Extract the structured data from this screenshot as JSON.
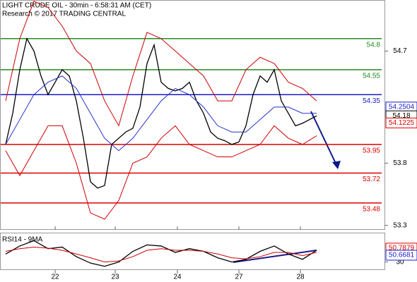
{
  "chart_data": [
    {
      "type": "line",
      "title": "LIGHT CRUDE OIL - 30min - 6:58:31 AM (CET)",
      "subtitle": "Research © 2017 TRADING CENTRAL",
      "xlim": [
        0,
        53
      ],
      "ylim": [
        53.27,
        55.11
      ],
      "yticks": [
        54.7,
        53.8,
        53.3
      ],
      "series": [
        {
          "color": "#000000",
          "x": [
            0,
            1,
            2,
            3,
            4,
            5,
            6,
            7,
            8,
            9,
            10,
            11,
            12,
            13,
            14,
            15,
            16,
            17,
            18,
            19,
            20,
            21,
            22,
            23,
            24,
            25,
            26,
            27,
            28,
            29,
            30,
            31,
            32,
            33,
            34,
            35,
            36,
            37,
            38,
            39,
            40,
            41,
            42,
            43,
            44
          ],
          "values": [
            53.95,
            54.2,
            54.55,
            54.8,
            54.7,
            54.5,
            54.35,
            54.45,
            54.55,
            54.5,
            54.3,
            54.0,
            53.65,
            53.6,
            53.62,
            53.95,
            54.0,
            54.05,
            54.08,
            54.25,
            54.6,
            54.75,
            54.45,
            54.4,
            54.38,
            54.4,
            54.45,
            54.3,
            54.2,
            54.05,
            54.0,
            53.98,
            53.95,
            53.97,
            54.1,
            54.35,
            54.5,
            54.45,
            54.55,
            54.3,
            54.2,
            54.1,
            54.12,
            54.15,
            54.18
          ]
        },
        {
          "color": "#cc0000",
          "x": [
            0,
            2,
            4,
            6,
            8,
            10,
            12,
            14,
            16,
            18,
            20,
            22,
            24,
            26,
            28,
            30,
            32,
            34,
            36,
            38,
            40,
            42,
            44
          ],
          "values": [
            54.3,
            54.8,
            55.1,
            55.05,
            54.9,
            54.7,
            54.6,
            54.3,
            54.1,
            54.5,
            54.85,
            54.8,
            54.7,
            54.6,
            54.5,
            54.3,
            54.3,
            54.55,
            54.65,
            54.6,
            54.45,
            54.4,
            54.3
          ]
        },
        {
          "color": "#cc0000",
          "x": [
            0,
            2,
            4,
            6,
            8,
            10,
            12,
            14,
            16,
            18,
            20,
            22,
            24,
            26,
            28,
            30,
            32,
            34,
            36,
            38,
            40,
            42,
            44
          ],
          "values": [
            53.9,
            53.7,
            53.9,
            54.1,
            54.1,
            53.8,
            53.4,
            53.35,
            53.5,
            53.8,
            53.85,
            54.0,
            54.1,
            53.95,
            53.9,
            53.85,
            53.85,
            53.9,
            53.95,
            54.1,
            54.0,
            53.95,
            54.02
          ]
        },
        {
          "color": "#2233cc",
          "x": [
            0,
            2,
            4,
            6,
            8,
            10,
            12,
            14,
            16,
            18,
            20,
            22,
            24,
            26,
            28,
            30,
            32,
            34,
            36,
            38,
            40,
            42,
            44
          ],
          "values": [
            53.95,
            54.15,
            54.35,
            54.45,
            54.5,
            54.4,
            54.2,
            54.0,
            53.9,
            54.0,
            54.15,
            54.3,
            54.4,
            54.35,
            54.25,
            54.1,
            54.05,
            54.05,
            54.15,
            54.25,
            54.25,
            54.2,
            54.2
          ]
        }
      ],
      "levels": [
        {
          "value": 54.8,
          "color": "#228b22"
        },
        {
          "value": 54.55,
          "color": "#228b22"
        },
        {
          "value": 54.35,
          "color": "#1a1acc"
        },
        {
          "value": 53.95,
          "color": "#dd0000"
        },
        {
          "value": 53.72,
          "color": "#dd0000"
        },
        {
          "value": 53.48,
          "color": "#dd0000"
        }
      ],
      "price_labels": [
        {
          "value": 54.2504,
          "color": "#1a1acc"
        },
        {
          "value": 54.18,
          "color": "#000000"
        },
        {
          "value": 54.1225,
          "color": "#dd0000"
        }
      ]
    },
    {
      "type": "line",
      "title": "RSI14 - 9MA",
      "xlim": [
        0,
        53
      ],
      "ylim": [
        15,
        85
      ],
      "yticks": [
        30
      ],
      "xticks": [
        {
          "value": 7,
          "label": "22"
        },
        {
          "value": 15.5,
          "label": "23"
        },
        {
          "value": 24.3,
          "label": "24"
        },
        {
          "value": 33,
          "label": "27"
        },
        {
          "value": 41.7,
          "label": "28"
        }
      ],
      "series": [
        {
          "color": "#000000",
          "x": [
            0,
            2,
            4,
            6,
            8,
            10,
            12,
            14,
            16,
            18,
            20,
            22,
            24,
            26,
            28,
            30,
            32,
            34,
            36,
            38,
            40,
            42,
            44
          ],
          "values": [
            45,
            60,
            70,
            55,
            58,
            40,
            28,
            22,
            30,
            50,
            62,
            60,
            48,
            55,
            50,
            38,
            30,
            35,
            50,
            60,
            45,
            35,
            52
          ]
        },
        {
          "color": "#cc0000",
          "x": [
            0,
            2,
            4,
            6,
            8,
            10,
            12,
            14,
            16,
            18,
            20,
            22,
            24,
            26,
            28,
            30,
            32,
            34,
            36,
            38,
            40,
            42,
            44
          ],
          "values": [
            50,
            55,
            58,
            56,
            52,
            45,
            38,
            30,
            32,
            40,
            52,
            55,
            52,
            52,
            50,
            45,
            38,
            36,
            40,
            48,
            48,
            42,
            48
          ]
        }
      ],
      "price_labels": [
        {
          "value": 50.7879,
          "color": "#dd0000"
        },
        {
          "value": 50.6681,
          "color": "#1a1acc"
        }
      ]
    }
  ]
}
